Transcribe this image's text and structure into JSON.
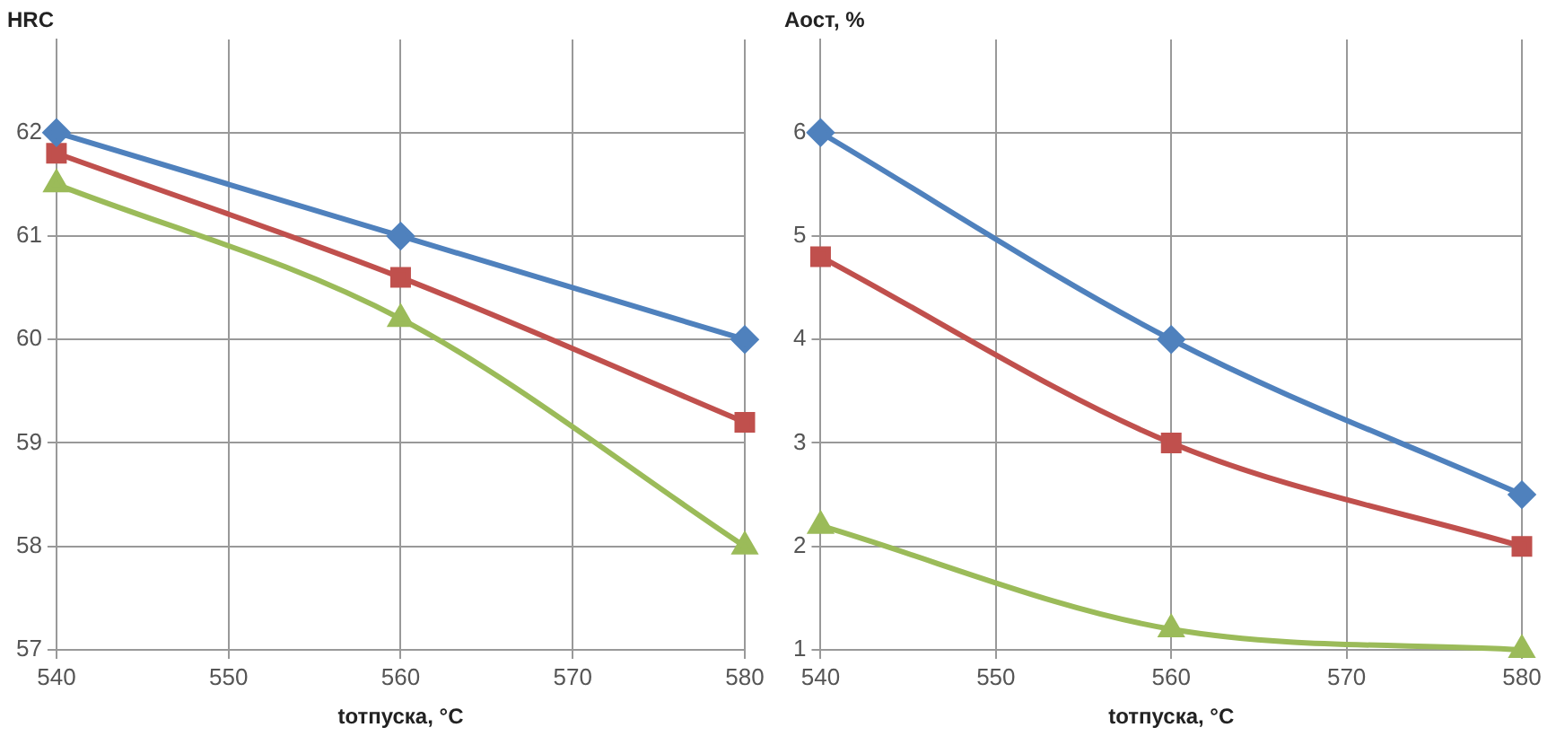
{
  "chart_data": [
    {
      "type": "line",
      "xlabel": "tотпуска, °C",
      "ylabel": "HRC",
      "x": [
        540,
        560,
        580
      ],
      "xlim": [
        540,
        580
      ],
      "xticks": [
        540,
        550,
        560,
        570,
        580
      ],
      "ylim": [
        57,
        62.9
      ],
      "yticks": [
        57,
        58,
        59,
        60,
        61,
        62
      ],
      "grid": true,
      "legend": false,
      "series": [
        {
          "color": "#4f81bd",
          "marker": "diamond",
          "values": [
            62,
            61,
            60
          ]
        },
        {
          "color": "#c0504d",
          "marker": "square",
          "values": [
            61.8,
            60.6,
            59.2
          ]
        },
        {
          "color": "#9bbb59",
          "marker": "triangle",
          "values": [
            61.5,
            60.2,
            58
          ]
        }
      ]
    },
    {
      "type": "line",
      "xlabel": "tотпуска, °C",
      "ylabel": "Аост, %",
      "x": [
        540,
        560,
        580
      ],
      "xlim": [
        540,
        580
      ],
      "xticks": [
        540,
        550,
        560,
        570,
        580
      ],
      "ylim": [
        1,
        6.9
      ],
      "yticks": [
        1,
        2,
        3,
        4,
        5,
        6
      ],
      "grid": true,
      "legend": false,
      "series": [
        {
          "color": "#4f81bd",
          "marker": "diamond",
          "values": [
            6,
            4,
            2.5
          ]
        },
        {
          "color": "#c0504d",
          "marker": "square",
          "values": [
            4.8,
            3,
            2
          ]
        },
        {
          "color": "#9bbb59",
          "marker": "triangle",
          "values": [
            2.2,
            1.2,
            1
          ]
        }
      ]
    }
  ]
}
